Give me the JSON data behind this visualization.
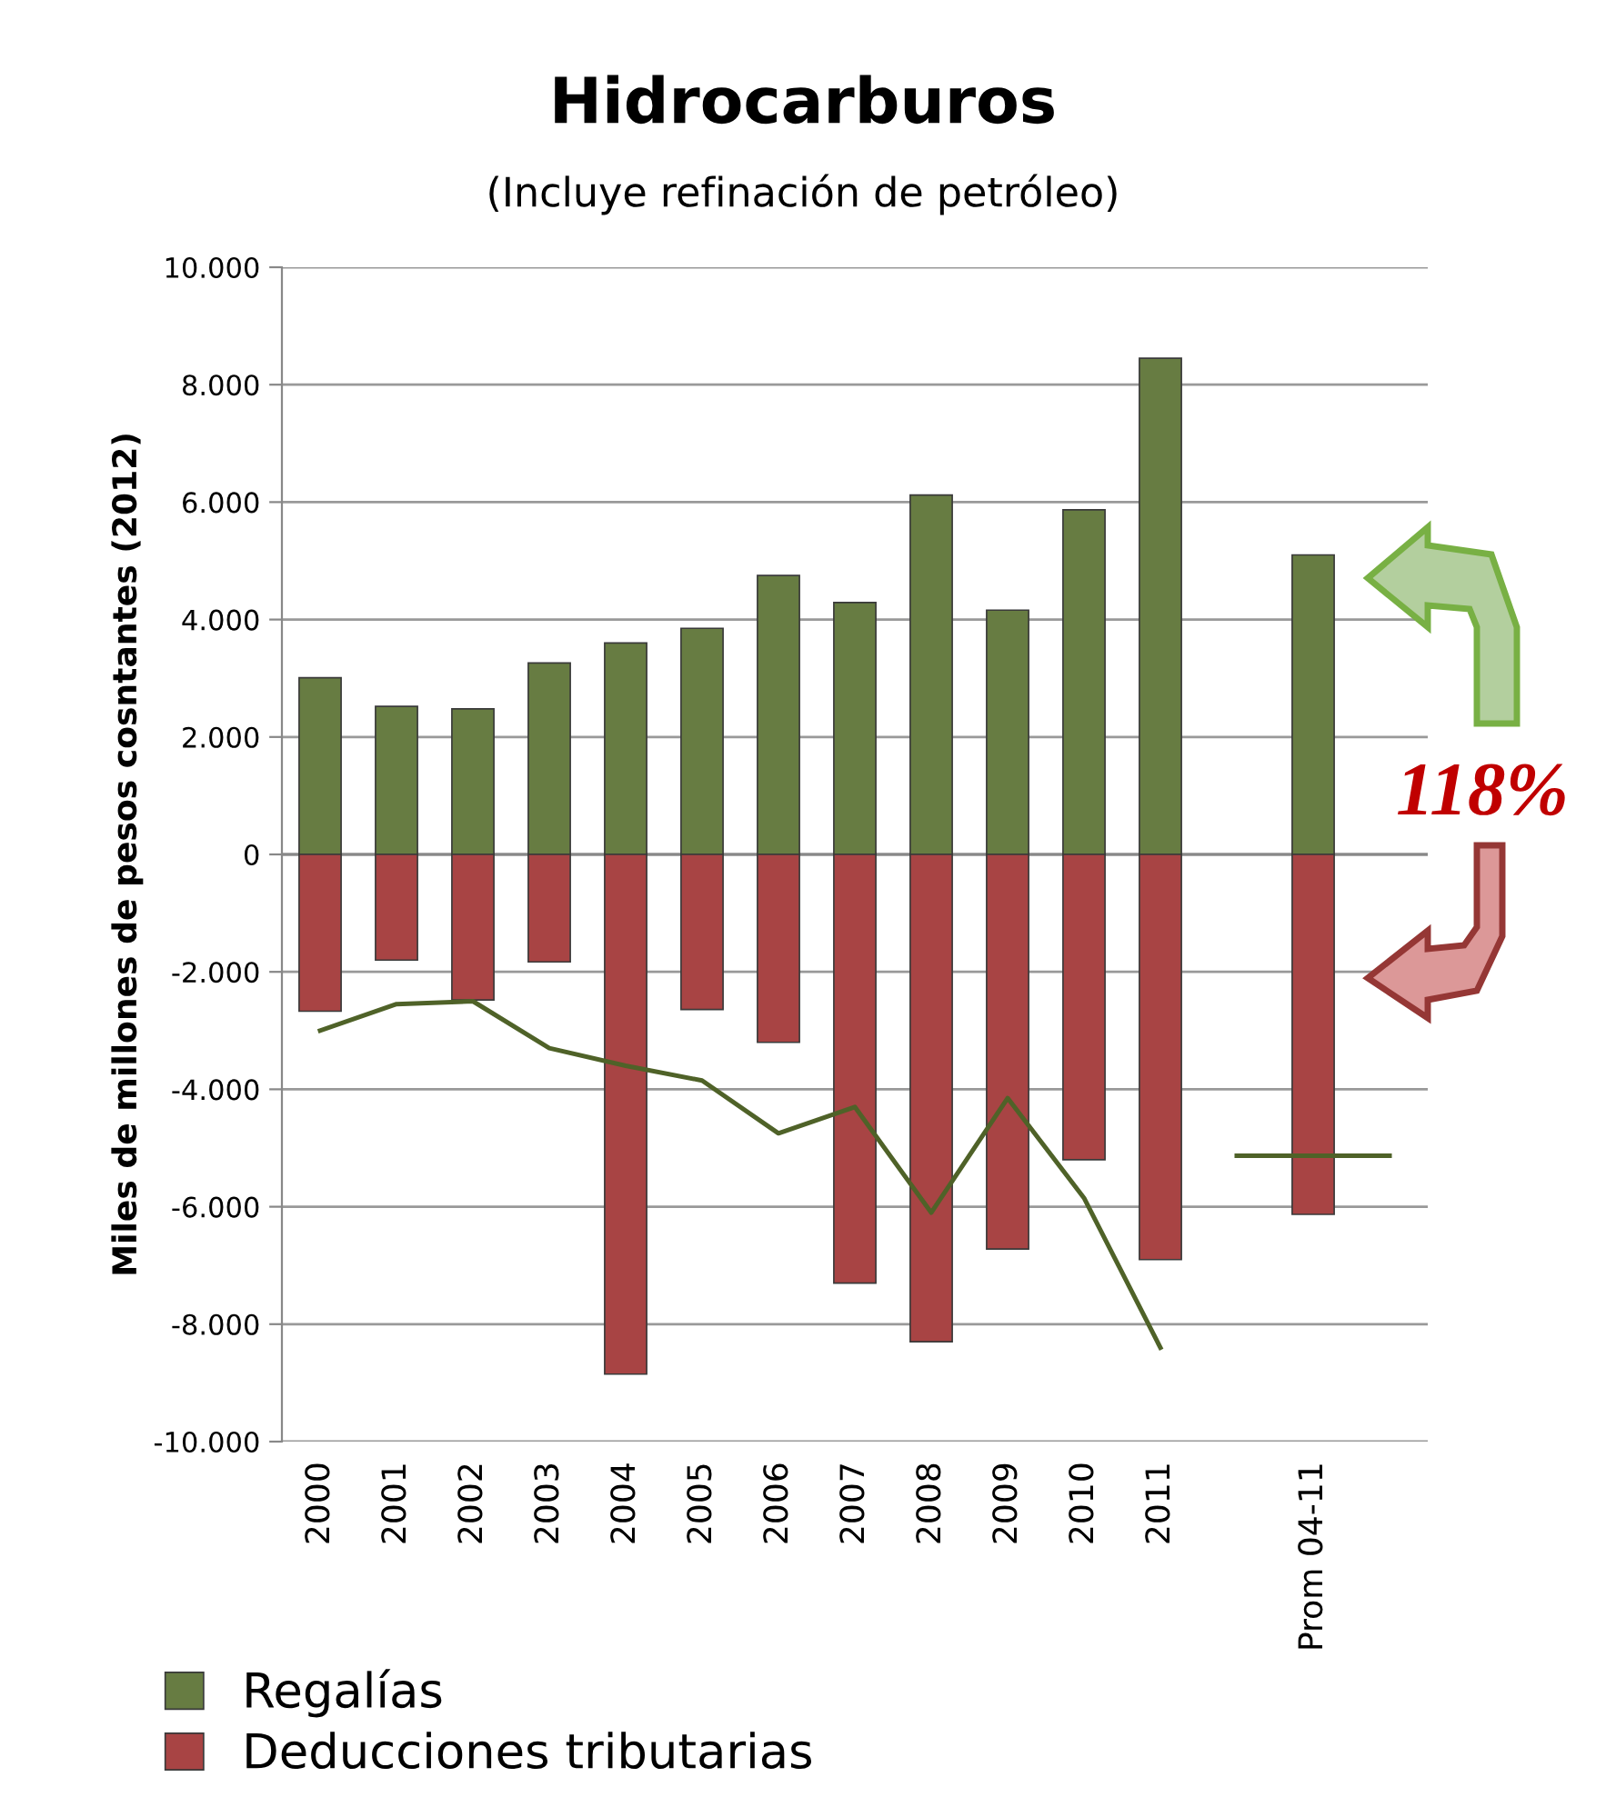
{
  "chart_data": {
    "type": "bar",
    "stacked": true,
    "title": "Hidrocarburos",
    "subtitle": "(Incluye refinación de petróleo)",
    "ylabel": "Miles de millones de pesos cosntantes (2012)",
    "categories": [
      "2000",
      "2001",
      "2002",
      "2003",
      "2004",
      "2005",
      "2006",
      "2007",
      "2008",
      "2009",
      "2010",
      "2011",
      null,
      "Prom 04-11",
      null
    ],
    "series": [
      {
        "name": "Regalías",
        "color": "#677c42",
        "values": [
          3010,
          2520,
          2480,
          3260,
          3600,
          3850,
          4750,
          4290,
          6120,
          4160,
          5870,
          8450,
          null,
          5100,
          null
        ]
      },
      {
        "name": "Deducciones tributarias",
        "color": "#a84444",
        "values": [
          -2670,
          -1800,
          -2480,
          -1830,
          -8850,
          -2640,
          -3200,
          -7300,
          -8300,
          -6720,
          -5200,
          -6900,
          null,
          -6130,
          null
        ]
      },
      {
        "type": "line",
        "color": "#4f6228",
        "values": [
          -3000,
          -2550,
          -2500,
          -3300,
          -3600,
          -3850,
          -4750,
          -4300,
          -6100,
          -4150,
          -5850,
          -8400,
          null,
          null,
          null
        ]
      },
      {
        "type": "line",
        "color": "#4f6228",
        "values": [
          null,
          null,
          null,
          null,
          null,
          null,
          null,
          null,
          null,
          null,
          null,
          null,
          -5130,
          -5130,
          -5130
        ]
      }
    ],
    "ylim": [
      -10000,
      10000
    ],
    "yticks": [
      {
        "value": -10000,
        "label": "-10.000"
      },
      {
        "value": -8000,
        "label": "-8.000"
      },
      {
        "value": -6000,
        "label": "-6.000"
      },
      {
        "value": -4000,
        "label": "-4.000"
      },
      {
        "value": -2000,
        "label": "-2.000"
      },
      0,
      {
        "value": 2000,
        "label": "2.000"
      },
      {
        "value": 4000,
        "label": "4.000"
      },
      {
        "value": 6000,
        "label": "6.000"
      },
      {
        "value": 8000,
        "label": "8.000"
      },
      {
        "value": 10000,
        "label": "10.000"
      }
    ],
    "grid": "y",
    "legend": "bottom left",
    "annotations": [
      "118%"
    ]
  }
}
